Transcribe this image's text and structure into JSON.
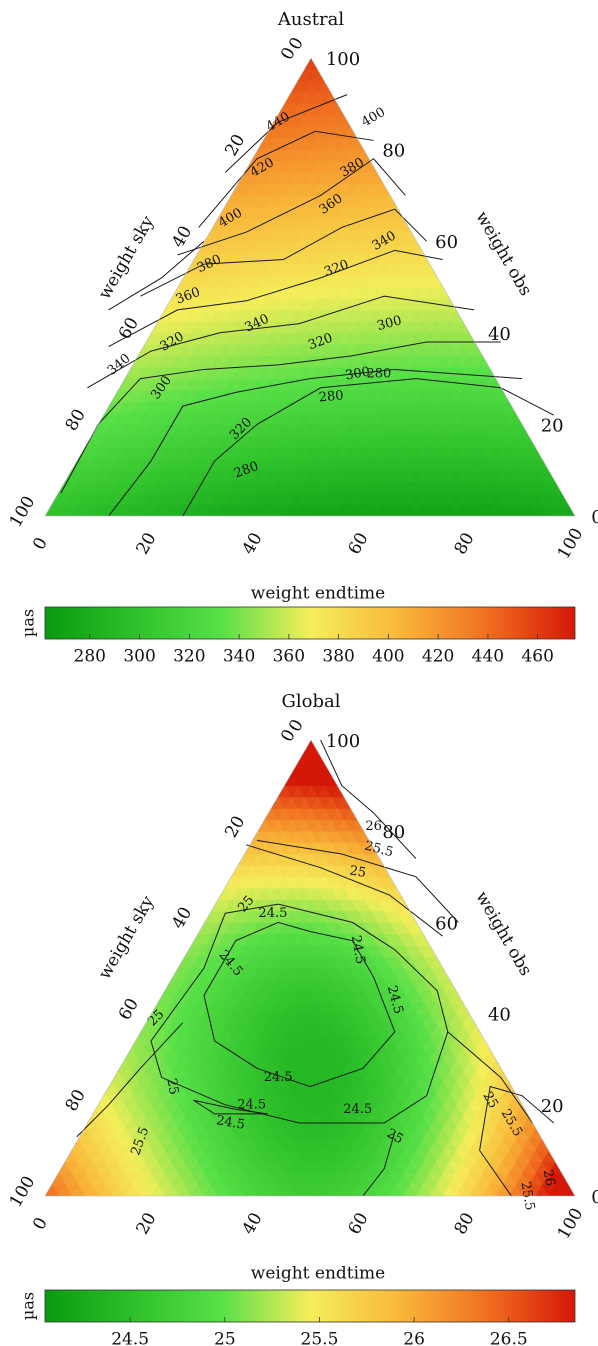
{
  "chart_data": [
    {
      "type": "heatmap",
      "subtype": "ternary-contour",
      "title": "Austral",
      "axes": {
        "top_vertex": {
          "value_label": "100",
          "zero_label": "0"
        },
        "sky": {
          "label": "weight sky",
          "ticks": [
            "0",
            "20",
            "40",
            "60",
            "80",
            "100"
          ]
        },
        "obs": {
          "label": "weight obs",
          "ticks": [
            "100",
            "80",
            "60",
            "40",
            "20",
            "0"
          ]
        },
        "endtime": {
          "label": "weight endtime",
          "ticks": [
            "0",
            "20",
            "40",
            "60",
            "80",
            "100"
          ]
        }
      },
      "corner_values": {
        "sky": 300,
        "obs": 460,
        "endtime": 275
      },
      "contour_levels": [
        280,
        300,
        320,
        340,
        360,
        380,
        400,
        420,
        440
      ],
      "contour_labels": [
        "440",
        "420",
        "400",
        "380",
        "360",
        "340",
        "320",
        "300",
        "280",
        "400",
        "380",
        "360",
        "340",
        "320",
        "300",
        "280",
        "320",
        "300",
        "280",
        "340",
        "320"
      ],
      "colorbar": {
        "unit": "µas",
        "min": 262,
        "max": 475,
        "ticks": [
          "280",
          "300",
          "320",
          "340",
          "360",
          "380",
          "400",
          "420",
          "440",
          "460"
        ],
        "colors": [
          "#0a9a10",
          "#2ec02a",
          "#58e048",
          "#f4ee5a",
          "#f9b83a",
          "#f07020",
          "#d41808"
        ]
      }
    },
    {
      "type": "heatmap",
      "subtype": "ternary-contour",
      "title": "Global",
      "axes": {
        "top_vertex": {
          "value_label": "100",
          "zero_label": "0"
        },
        "sky": {
          "label": "weight sky",
          "ticks": [
            "0",
            "20",
            "40",
            "60",
            "80",
            "100"
          ]
        },
        "obs": {
          "label": "weight obs",
          "ticks": [
            "100",
            "80",
            "60",
            "40",
            "20",
            "0"
          ]
        },
        "endtime": {
          "label": "weight endtime",
          "ticks": [
            "0",
            "20",
            "40",
            "60",
            "80",
            "100"
          ]
        }
      },
      "contour_levels": [
        24.5,
        25,
        25.5,
        26
      ],
      "contour_labels": [
        "26",
        "25.5",
        "25",
        "25",
        "24.5",
        "24.5",
        "24.5",
        "24.5",
        "24.5",
        "24.5",
        "24.5",
        "24.5",
        "25",
        "25",
        "25.5",
        "25",
        "25",
        "25.5",
        "26",
        "25.5"
      ],
      "colorbar": {
        "unit": "µas",
        "min": 24.05,
        "max": 26.85,
        "ticks": [
          "24.5",
          "25",
          "25.5",
          "26",
          "26.5"
        ],
        "colors": [
          "#0a9a10",
          "#2ec02a",
          "#58e048",
          "#f4ee5a",
          "#f9b83a",
          "#f07020",
          "#d41808"
        ]
      }
    }
  ]
}
